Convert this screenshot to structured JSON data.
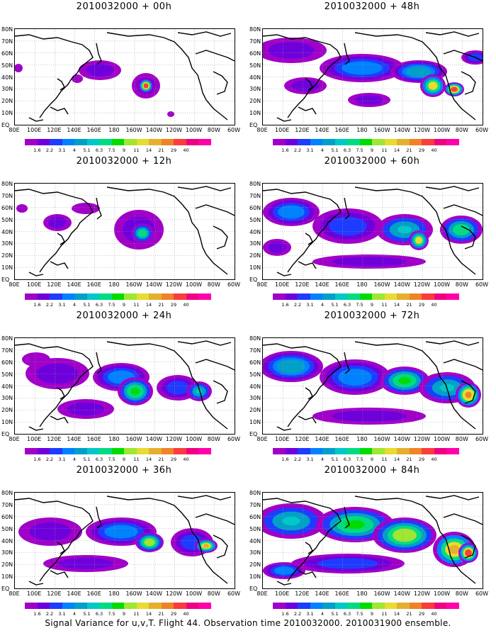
{
  "panels": [
    {
      "title": "2010032000 + 00h"
    },
    {
      "title": "2010032000 + 48h"
    },
    {
      "title": "2010032000 + 12h"
    },
    {
      "title": "2010032000 + 60h"
    },
    {
      "title": "2010032000 + 24h"
    },
    {
      "title": "2010032000 + 72h"
    },
    {
      "title": "2010032000 + 36h"
    },
    {
      "title": "2010032000 + 84h"
    }
  ],
  "lat_labels": [
    "80N",
    "70N",
    "60N",
    "50N",
    "40N",
    "30N",
    "20N",
    "10N",
    "EQ"
  ],
  "lon_labels": [
    "80E",
    "100E",
    "120E",
    "140E",
    "160E",
    "180",
    "160W",
    "140W",
    "120W",
    "100W",
    "80W",
    "60W"
  ],
  "colorbar": {
    "labels": [
      "1.6",
      "2.2",
      "3.1",
      "4",
      "5.1",
      "6.3",
      "7.5",
      "9",
      "11",
      "14",
      "21",
      "29",
      "40"
    ],
    "colors": [
      "#a000c8",
      "#6e00dc",
      "#1e3cff",
      "#0082ff",
      "#00a0c8",
      "#00c8c8",
      "#00dc82",
      "#00dc00",
      "#a0e632",
      "#e6dc32",
      "#e6af2d",
      "#f08228",
      "#fa3c3c",
      "#f00082",
      "#ff00aa"
    ]
  },
  "caption": "Signal Variance for u,v,T. Flight 44. Observation time 2010032000. 2010031900 ensemble."
}
